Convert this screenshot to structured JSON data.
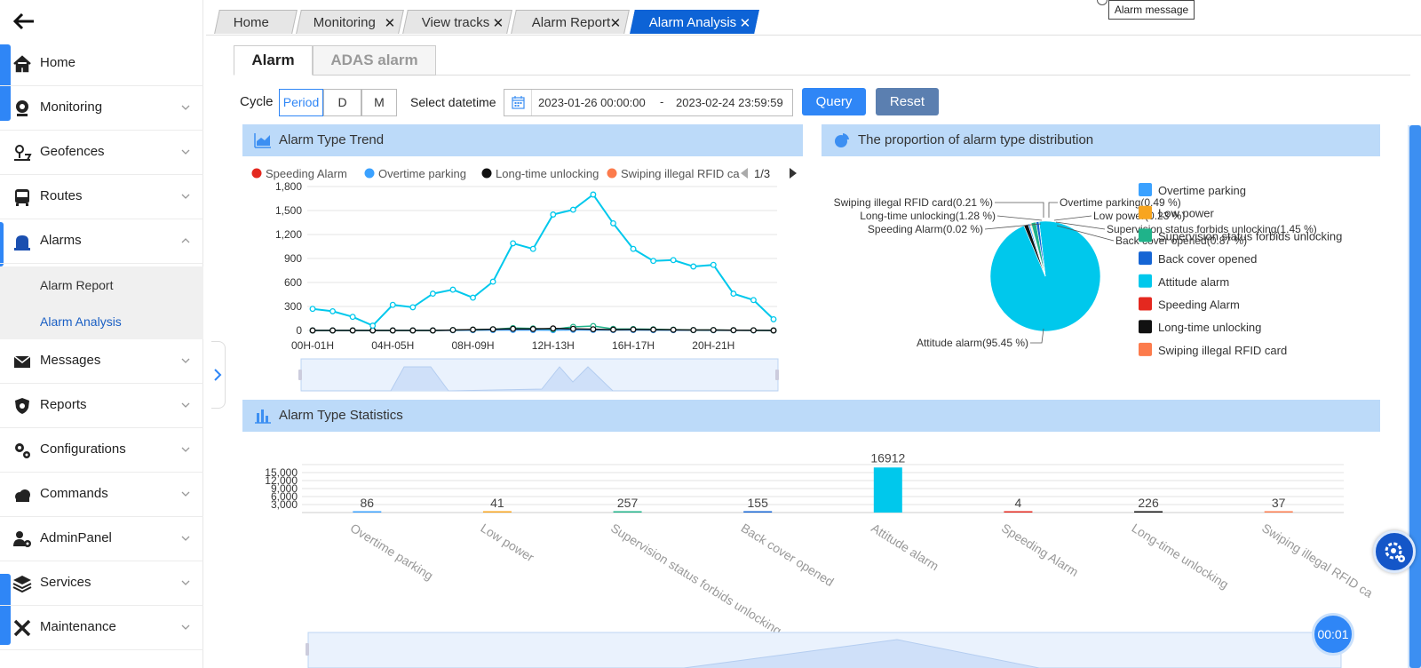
{
  "sidebar": {
    "items": [
      {
        "label": "Home",
        "icon": "home-icon"
      },
      {
        "label": "Monitoring",
        "icon": "webcam-icon"
      },
      {
        "label": "Geofences",
        "icon": "geofence-icon"
      },
      {
        "label": "Routes",
        "icon": "bus-icon"
      },
      {
        "label": "Alarms",
        "icon": "alarm-bell-icon"
      },
      {
        "label": "Messages",
        "icon": "envelope-icon"
      },
      {
        "label": "Reports",
        "icon": "shield-icon"
      },
      {
        "label": "Configurations",
        "icon": "gears-icon"
      },
      {
        "label": "Commands",
        "icon": "cloud-icon"
      },
      {
        "label": "AdminPanel",
        "icon": "user-gear-icon"
      },
      {
        "label": "Services",
        "icon": "layers-icon"
      },
      {
        "label": "Maintenance",
        "icon": "tools-icon"
      }
    ],
    "alarm_sub": [
      {
        "label": "Alarm Report"
      },
      {
        "label": "Alarm Analysis"
      }
    ]
  },
  "tabs": [
    {
      "label": "Home",
      "closable": false
    },
    {
      "label": "Monitoring",
      "closable": true
    },
    {
      "label": "View tracks",
      "closable": true
    },
    {
      "label": "Alarm Report",
      "closable": true
    },
    {
      "label": "Alarm Analysis",
      "closable": true,
      "active": true
    }
  ],
  "tab_close_glyph": "✕",
  "tooltip": {
    "label": "Alarm message"
  },
  "subtabs": {
    "alarm": "Alarm",
    "adas": "ADAS alarm"
  },
  "filter": {
    "cycle_label": "Cycle",
    "cycle_options": [
      "Period",
      "D",
      "M"
    ],
    "datetime_label": "Select datetime",
    "start": "2023-01-26 00:00:00",
    "separator": "-",
    "end": "2023-02-24 23:59:59",
    "query": "Query",
    "reset": "Reset"
  },
  "panels": {
    "trend": "Alarm Type Trend",
    "proportion": "The proportion of alarm type distribution",
    "statistics": "Alarm Type Statistics"
  },
  "timer": "00:01",
  "colors": {
    "blue": "#2f86f6",
    "attitude": "#00c8ec",
    "speeding": "#e4281f",
    "overtime": "#3aa1ff",
    "long_unlock": "#111111",
    "swiping": "#fc7b4c",
    "low_power": "#f8a51f",
    "supervision": "#1fb38a",
    "back_cover": "#1565d4"
  },
  "chart_data": [
    {
      "type": "line",
      "title": "Alarm Type Trend",
      "legend_page": "1/3",
      "legend": [
        "Speeding Alarm",
        "Overtime parking",
        "Long-time unlocking",
        "Swiping illegal RFID ca"
      ],
      "x_tick_labels": [
        "00H-01H",
        "04H-05H",
        "08H-09H",
        "12H-13H",
        "16H-17H",
        "20H-21H"
      ],
      "y_ticks": [
        "0",
        "300",
        "600",
        "900",
        "1,200",
        "1,500",
        "1,800"
      ],
      "ylim": [
        0,
        1800
      ],
      "series": [
        {
          "name": "Attitude alarm",
          "values": [
            270,
            240,
            170,
            60,
            320,
            290,
            460,
            510,
            410,
            610,
            1090,
            1020,
            1450,
            1510,
            1700,
            1340,
            1020,
            870,
            880,
            800,
            820,
            460,
            380,
            140
          ]
        },
        {
          "name": "Long-time unlocking",
          "values": [
            0,
            0,
            0,
            0,
            0,
            0,
            0,
            5,
            10,
            15,
            20,
            18,
            25,
            20,
            15,
            10,
            12,
            10,
            8,
            5,
            5,
            3,
            2,
            0
          ]
        },
        {
          "name": "Supervision status forbids unlocking",
          "values": [
            0,
            0,
            0,
            0,
            0,
            0,
            0,
            5,
            10,
            15,
            30,
            25,
            15,
            45,
            55,
            20,
            18,
            15,
            10,
            5,
            5,
            3,
            2,
            0
          ]
        },
        {
          "name": "Overtime parking",
          "values": [
            0,
            0,
            0,
            0,
            0,
            0,
            0,
            2,
            3,
            5,
            6,
            5,
            4,
            8,
            6,
            5,
            5,
            4,
            3,
            3,
            2,
            2,
            1,
            0
          ]
        }
      ]
    },
    {
      "type": "pie",
      "title": "The proportion of alarm type distribution",
      "legend": [
        "Overtime parking",
        "Low power",
        "Supervision status forbids unlocking",
        "Back cover opened",
        "Attitude alarm",
        "Speeding Alarm",
        "Long-time unlocking",
        "Swiping illegal RFID card"
      ],
      "slices": [
        {
          "label": "Swiping illegal RFID card(0.21 %)",
          "value": 0.21
        },
        {
          "label": "Overtime parking(0.49 %)",
          "value": 0.49
        },
        {
          "label": "Long-time unlocking(1.28 %)",
          "value": 1.28
        },
        {
          "label": "Low power(0.23 %)",
          "value": 0.23
        },
        {
          "label": "Supervision status forbids unlocking(1.45 %)",
          "value": 1.45
        },
        {
          "label": "Speeding Alarm(0.02 %)",
          "value": 0.02
        },
        {
          "label": "Back cover opened(0.87 %)",
          "value": 0.87
        },
        {
          "label": "Attitude alarm(95.45 %)",
          "value": 95.45
        }
      ]
    },
    {
      "type": "bar",
      "title": "Alarm Type Statistics",
      "categories": [
        "Overtime parking",
        "Low power",
        "Supervision status forbids unlocking",
        "Back cover opened",
        "Attitude alarm",
        "Speeding Alarm",
        "Long-time unlocking",
        "Swiping illegal RFID ca"
      ],
      "values": [
        86,
        41,
        257,
        155,
        16912,
        4,
        226,
        37
      ],
      "value_labels": [
        "86",
        "41",
        "257",
        "155",
        "16912",
        "4",
        "226",
        "37"
      ],
      "y_ticks": [
        "3,000",
        "6,000",
        "9,000",
        "12,000",
        "15,000"
      ],
      "ylim": [
        0,
        18000
      ]
    }
  ]
}
